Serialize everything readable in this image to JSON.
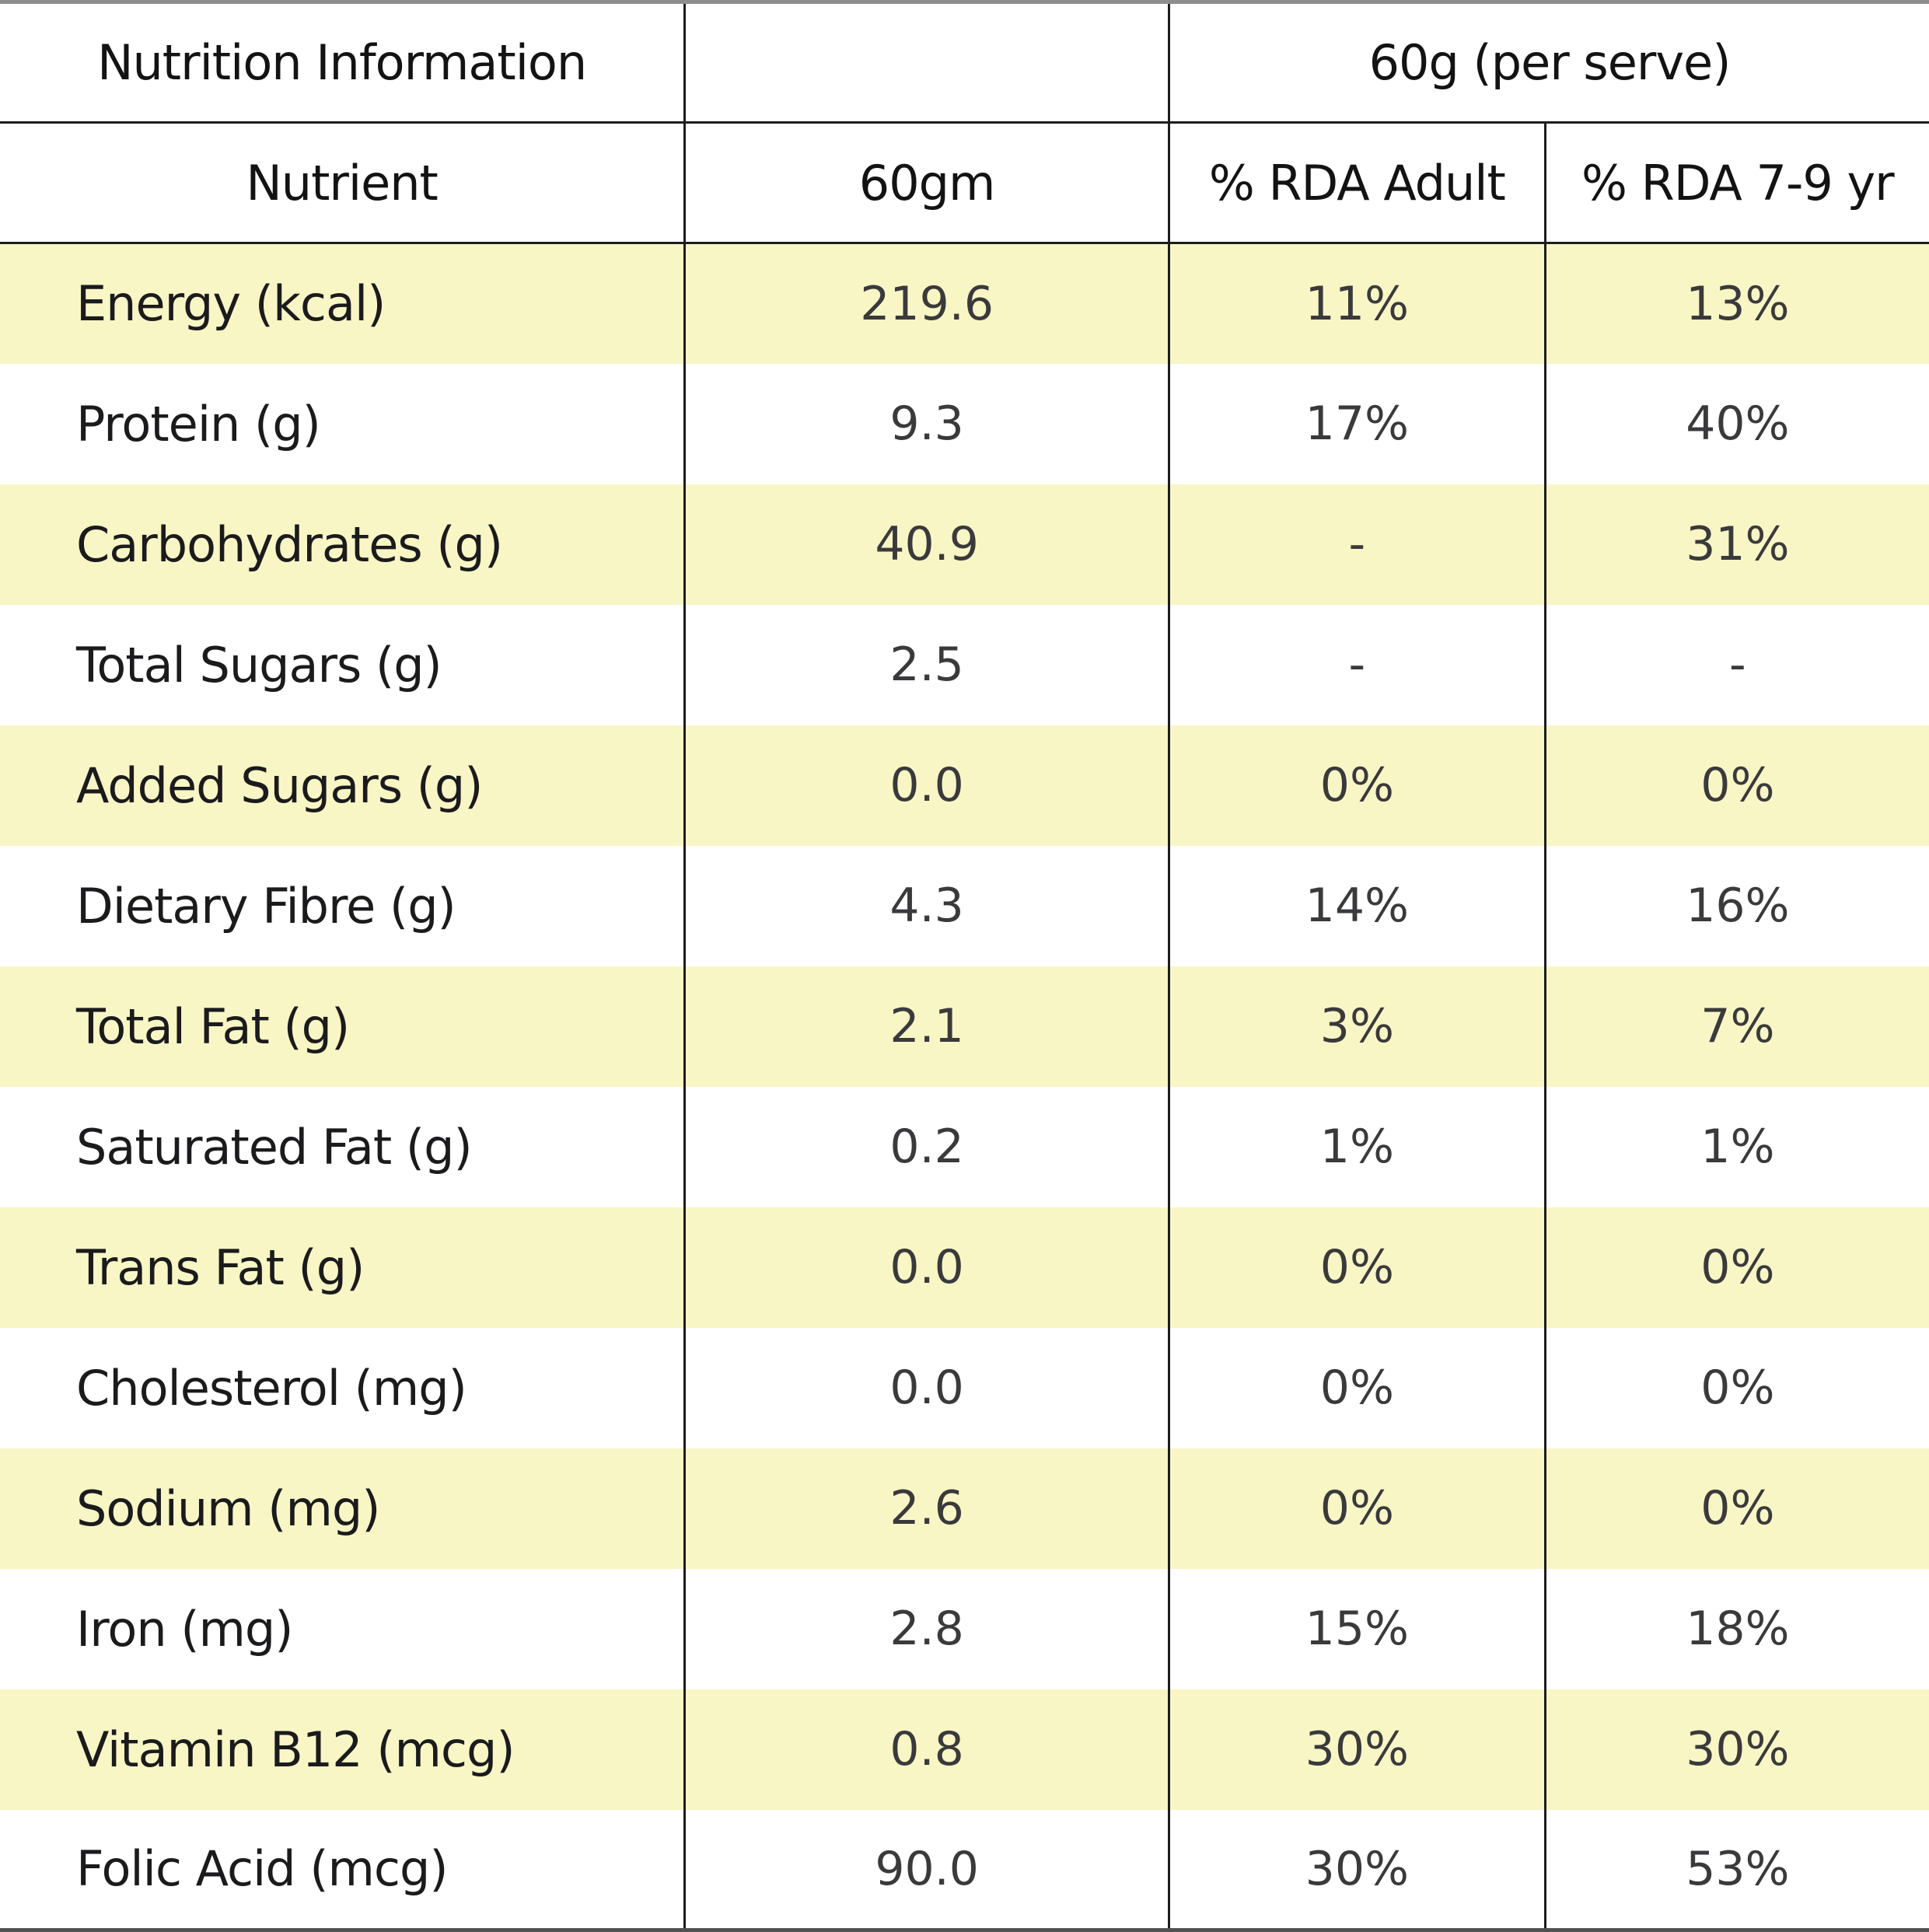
{
  "colors": {
    "stripe_yellow": "#f8f6c5",
    "header_text": "#131314",
    "label_text": "#1b1b1d",
    "value_text": "#3a3a3c",
    "grid_line": "#1d1d1d"
  },
  "chart_data": {
    "type": "table",
    "title": "Nutrition Information",
    "serving": "60g (per serve)",
    "columns": [
      "Nutrient",
      "60gm",
      "% RDA Adult",
      "% RDA 7-9 yr"
    ],
    "rows": [
      [
        "Energy (kcal)",
        "219.6",
        "11%",
        "13%"
      ],
      [
        "Protein (g)",
        "9.3",
        "17%",
        "40%"
      ],
      [
        "Carbohydrates (g)",
        "40.9",
        "-",
        "31%"
      ],
      [
        "Total Sugars (g)",
        "2.5",
        "-",
        "-"
      ],
      [
        "Added Sugars (g)",
        "0.0",
        "0%",
        "0%"
      ],
      [
        "Dietary Fibre (g)",
        "4.3",
        "14%",
        "16%"
      ],
      [
        "Total Fat (g)",
        "2.1",
        "3%",
        "7%"
      ],
      [
        "Saturated Fat (g)",
        "0.2",
        "1%",
        "1%"
      ],
      [
        "Trans Fat (g)",
        "0.0",
        "0%",
        "0%"
      ],
      [
        "Cholesterol (mg)",
        "0.0",
        "0%",
        "0%"
      ],
      [
        "Sodium (mg)",
        "2.6",
        "0%",
        "0%"
      ],
      [
        "Iron (mg)",
        "2.8",
        "15%",
        "18%"
      ],
      [
        "Vitamin B12 (mcg)",
        "0.8",
        "30%",
        "30%"
      ],
      [
        "Folic Acid (mcg)",
        "90.0",
        "30%",
        "53%"
      ]
    ],
    "layout": {
      "striped_rows": "odd data rows (1st, 3rd, 5th, ...) have pale yellow background",
      "grid": "vertical dividers between all 4 columns; horizontal lines below both header rows and at table bottom"
    }
  }
}
